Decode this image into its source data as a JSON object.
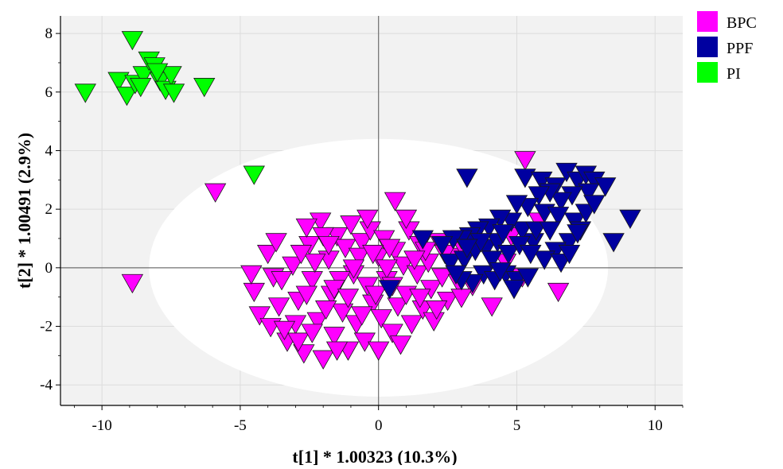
{
  "chart_data": {
    "type": "scatter",
    "xlabel": "t[1] * 1.00323 (10.3%)",
    "ylabel": "t[2] * 1.00491 (2.9%)",
    "xlim": [
      -11.5,
      11
    ],
    "ylim": [
      -4.7,
      8.6
    ],
    "xticks": [
      -10,
      -5,
      0,
      5,
      10
    ],
    "yticks": [
      -4,
      -2,
      0,
      2,
      4,
      6,
      8
    ],
    "grid": true,
    "ellipse": {
      "cx": 0,
      "cy": 0,
      "rx": 8.3,
      "ry": 4.4
    },
    "legend_position": "top-right (outside plot)",
    "series": [
      {
        "name": "BPC",
        "color": "#ff00ff",
        "marker": "triangle-down",
        "points": [
          [
            -8.9,
            -0.5
          ],
          [
            -5.9,
            2.6
          ],
          [
            0.6,
            2.3
          ],
          [
            5.3,
            3.7
          ],
          [
            6.5,
            -0.8
          ],
          [
            4.1,
            -1.3
          ],
          [
            5.8,
            1.6
          ],
          [
            4.8,
            1.1
          ],
          [
            5.2,
            -0.3
          ],
          [
            4.6,
            0.2
          ],
          [
            -4.0,
            0.5
          ],
          [
            -4.5,
            -0.8
          ],
          [
            -4.3,
            -1.6
          ],
          [
            -3.9,
            -2.0
          ],
          [
            -3.6,
            -1.3
          ],
          [
            -3.8,
            -0.3
          ],
          [
            -3.3,
            -2.5
          ],
          [
            -3.1,
            0.1
          ],
          [
            -2.9,
            -1.1
          ],
          [
            -2.7,
            -2.9
          ],
          [
            -2.5,
            0.8
          ],
          [
            -2.4,
            -0.4
          ],
          [
            -2.2,
            -1.8
          ],
          [
            -2.1,
            1.6
          ],
          [
            -2.0,
            -3.1
          ],
          [
            -1.8,
            0.3
          ],
          [
            -1.7,
            -0.9
          ],
          [
            -1.6,
            -2.3
          ],
          [
            -1.5,
            1.1
          ],
          [
            -1.3,
            -1.5
          ],
          [
            -1.2,
            0.7
          ],
          [
            -1.1,
            -2.8
          ],
          [
            -1.0,
            1.5
          ],
          [
            -0.9,
            -0.2
          ],
          [
            -0.8,
            -1.9
          ],
          [
            -0.6,
            0.9
          ],
          [
            -0.5,
            -2.5
          ],
          [
            -0.4,
            -0.6
          ],
          [
            -0.3,
            1.3
          ],
          [
            -0.2,
            -1.2
          ],
          [
            0.0,
            0.4
          ],
          [
            0.1,
            -1.7
          ],
          [
            0.2,
            1.0
          ],
          [
            0.3,
            -0.4
          ],
          [
            0.5,
            -2.2
          ],
          [
            0.6,
            0.6
          ],
          [
            0.7,
            -1.3
          ],
          [
            0.9,
            0.1
          ],
          [
            1.0,
            -0.9
          ],
          [
            1.1,
            1.3
          ],
          [
            1.2,
            -1.9
          ],
          [
            1.4,
            -0.2
          ],
          [
            1.5,
            0.8
          ],
          [
            1.6,
            -1.4
          ],
          [
            1.8,
            0.2
          ],
          [
            1.9,
            -0.7
          ],
          [
            2.0,
            -1.8
          ],
          [
            2.2,
            0.9
          ],
          [
            2.3,
            -0.3
          ],
          [
            2.5,
            -1.1
          ],
          [
            2.7,
            0.4
          ],
          [
            2.9,
            -0.5
          ],
          [
            3.1,
            0.6
          ],
          [
            3.4,
            -0.6
          ],
          [
            3.0,
            -1.0
          ],
          [
            -3.5,
            -0.4
          ],
          [
            -3.0,
            -1.9
          ],
          [
            -2.6,
            -0.9
          ],
          [
            -2.3,
            0.2
          ],
          [
            -1.9,
            -1.4
          ],
          [
            -1.4,
            -0.4
          ],
          [
            -0.7,
            0.4
          ],
          [
            0.4,
            0.7
          ],
          [
            -0.1,
            -0.9
          ],
          [
            -2.8,
            0.5
          ],
          [
            -1.6,
            -0.7
          ],
          [
            -0.4,
            1.7
          ],
          [
            0.8,
            -2.6
          ],
          [
            1.7,
            0.6
          ],
          [
            -3.4,
            -2.1
          ],
          [
            -1.1,
            -1.0
          ],
          [
            0.3,
            0.0
          ],
          [
            -2.0,
            1.1
          ],
          [
            1.3,
            0.3
          ],
          [
            -0.6,
            -1.6
          ],
          [
            2.4,
            0.5
          ],
          [
            -4.6,
            -0.2
          ],
          [
            -2.6,
            1.4
          ],
          [
            -0.2,
            0.5
          ],
          [
            1.0,
            1.7
          ],
          [
            -1.5,
            -2.8
          ],
          [
            -2.9,
            -2.5
          ],
          [
            0.5,
            -0.6
          ],
          [
            2.1,
            -1.4
          ],
          [
            -3.7,
            0.9
          ],
          [
            -1.8,
            0.8
          ],
          [
            -0.9,
            0.0
          ],
          [
            1.5,
            -1.0
          ],
          [
            -2.4,
            -2.2
          ],
          [
            0.0,
            -2.8
          ]
        ]
      },
      {
        "name": "PPF",
        "color": "#0000a0",
        "marker": "triangle-down",
        "points": [
          [
            3.2,
            3.1
          ],
          [
            5.3,
            3.1
          ],
          [
            5.9,
            3.0
          ],
          [
            6.4,
            2.8
          ],
          [
            6.8,
            3.3
          ],
          [
            7.2,
            3.0
          ],
          [
            7.5,
            3.2
          ],
          [
            7.8,
            3.0
          ],
          [
            8.2,
            2.8
          ],
          [
            7.6,
            2.6
          ],
          [
            7.0,
            2.5
          ],
          [
            6.6,
            2.3
          ],
          [
            6.2,
            2.6
          ],
          [
            5.8,
            2.5
          ],
          [
            5.4,
            2.1
          ],
          [
            5.0,
            2.2
          ],
          [
            6.0,
            1.9
          ],
          [
            6.5,
            1.8
          ],
          [
            7.1,
            1.6
          ],
          [
            7.5,
            1.9
          ],
          [
            9.1,
            1.7
          ],
          [
            8.5,
            0.9
          ],
          [
            7.3,
            1.3
          ],
          [
            6.9,
            0.9
          ],
          [
            6.4,
            0.6
          ],
          [
            6.0,
            0.3
          ],
          [
            5.6,
            0.9
          ],
          [
            5.2,
            1.3
          ],
          [
            4.8,
            1.6
          ],
          [
            4.4,
            1.7
          ],
          [
            4.0,
            1.4
          ],
          [
            3.6,
            1.3
          ],
          [
            3.3,
            1.1
          ],
          [
            3.0,
            1.0
          ],
          [
            2.7,
            1.0
          ],
          [
            2.3,
            0.8
          ],
          [
            1.6,
            1.0
          ],
          [
            2.6,
            0.2
          ],
          [
            3.1,
            0.3
          ],
          [
            3.5,
            0.6
          ],
          [
            3.9,
            0.7
          ],
          [
            4.3,
            0.9
          ],
          [
            4.7,
            0.5
          ],
          [
            5.1,
            0.8
          ],
          [
            3.8,
            -0.2
          ],
          [
            4.2,
            -0.4
          ],
          [
            4.6,
            -0.2
          ],
          [
            5.0,
            -0.4
          ],
          [
            5.4,
            -0.3
          ],
          [
            4.9,
            -0.7
          ],
          [
            3.4,
            -0.5
          ],
          [
            3.0,
            -0.4
          ],
          [
            2.8,
            -0.2
          ],
          [
            6.6,
            0.2
          ],
          [
            6.9,
            0.5
          ],
          [
            7.2,
            1.2
          ],
          [
            0.4,
            -0.7
          ],
          [
            5.7,
            1.3
          ],
          [
            4.5,
            1.2
          ],
          [
            3.7,
            0.9
          ],
          [
            6.2,
            1.3
          ],
          [
            5.5,
            0.5
          ],
          [
            4.1,
            0.3
          ],
          [
            7.8,
            2.2
          ],
          [
            3.2,
            0.7
          ],
          [
            4.4,
            -0.1
          ]
        ]
      },
      {
        "name": "PI",
        "color": "#00ff00",
        "marker": "triangle-down",
        "points": [
          [
            -8.9,
            7.8
          ],
          [
            -10.6,
            6.0
          ],
          [
            -9.4,
            6.4
          ],
          [
            -9.1,
            5.9
          ],
          [
            -8.8,
            6.3
          ],
          [
            -8.5,
            6.6
          ],
          [
            -8.3,
            7.1
          ],
          [
            -8.1,
            6.9
          ],
          [
            -7.9,
            6.4
          ],
          [
            -7.7,
            6.1
          ],
          [
            -7.5,
            6.6
          ],
          [
            -7.4,
            6.0
          ],
          [
            -8.6,
            6.2
          ],
          [
            -6.3,
            6.2
          ],
          [
            -8.0,
            6.7
          ],
          [
            -4.5,
            3.2
          ]
        ]
      }
    ]
  }
}
